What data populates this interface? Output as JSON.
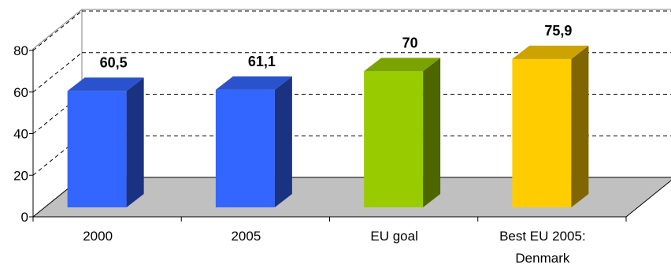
{
  "chart_data": {
    "type": "bar",
    "categories": [
      "2000",
      "2005",
      "EU goal",
      "Best EU 2005: Denmark"
    ],
    "category_lines": [
      [
        "2000"
      ],
      [
        "2005"
      ],
      [
        "EU goal"
      ],
      [
        "Best EU 2005:",
        "Denmark"
      ]
    ],
    "values": [
      60.5,
      61.1,
      70,
      75.9
    ],
    "data_labels": [
      "60,5",
      "61,1",
      "70",
      "75,9"
    ],
    "ylim": [
      0,
      80
    ],
    "yticks": [
      0,
      20,
      40,
      60,
      80
    ],
    "grid": true,
    "three_d": true,
    "colors": {
      "bars": [
        "#3366ff",
        "#3366ff",
        "#99cc00",
        "#ffcc00"
      ],
      "bar_sides": [
        "#1a3280",
        "#1a3280",
        "#4d6600",
        "#806600"
      ],
      "bar_tops": [
        "#2a52cc",
        "#2a52cc",
        "#7aa300",
        "#cca300"
      ],
      "floor": "#c0c0c0"
    }
  }
}
